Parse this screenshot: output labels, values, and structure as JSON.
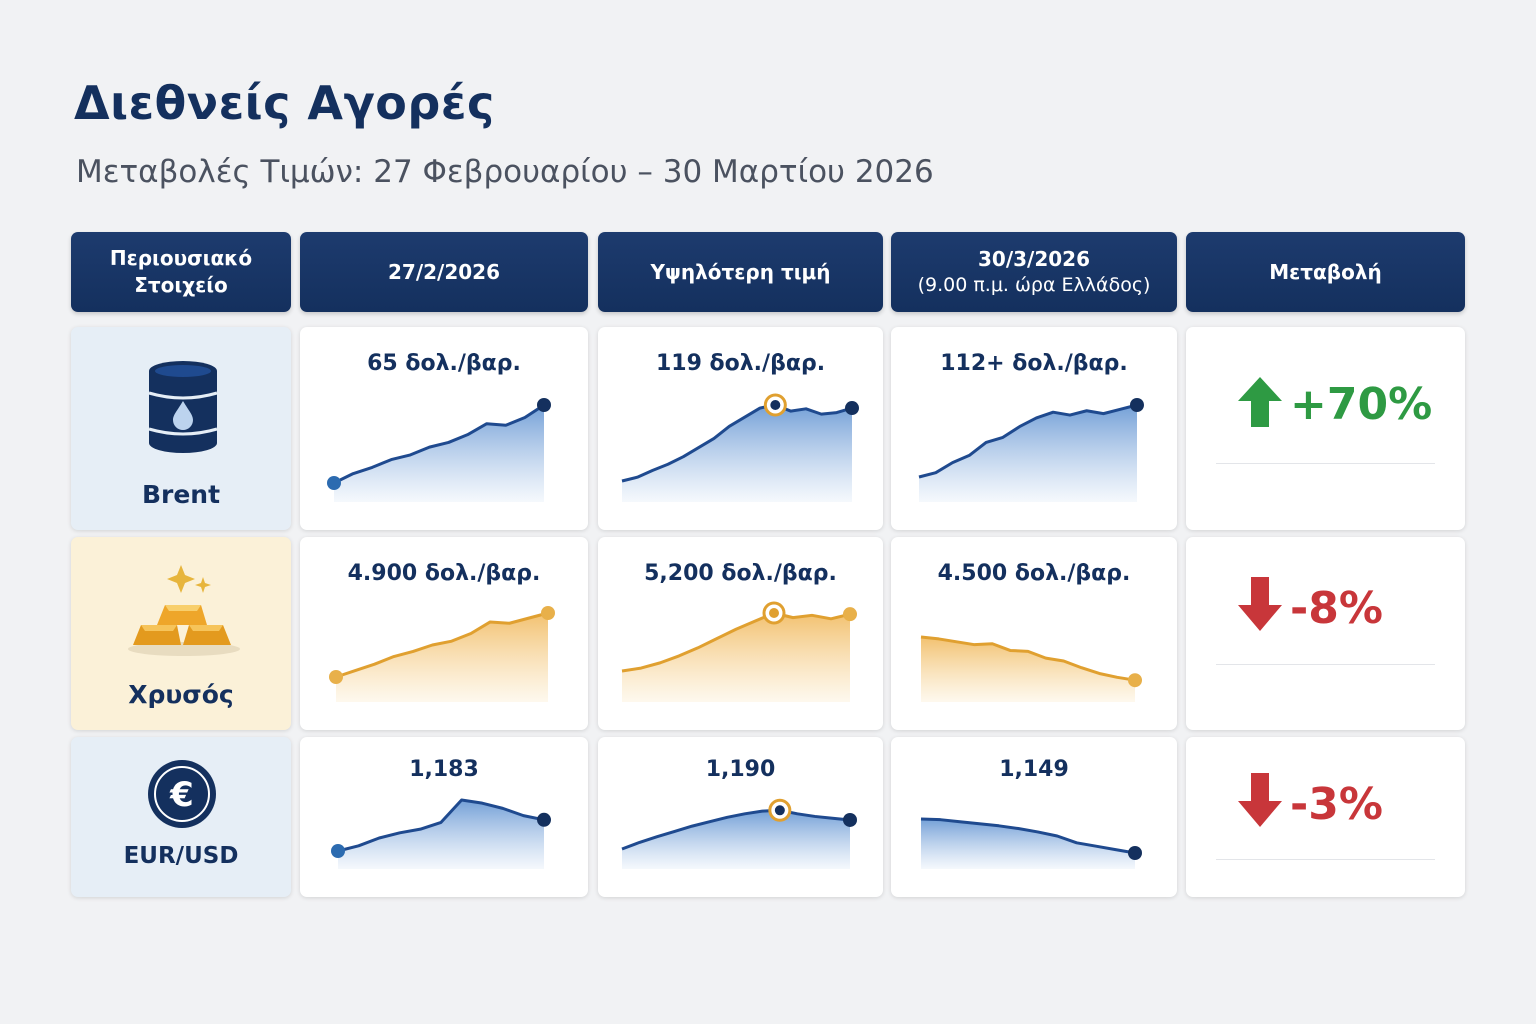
{
  "title": "Διεθνείς Αγορές",
  "subtitle": "Μεταβολές Τιμών: 27 Φεβρουαρίου – 30 Μαρτίου 2026",
  "headers": {
    "asset_line1": "Περιουσιακό",
    "asset_line2": "Στοιχείο",
    "start": "27/2/2026",
    "high": "Υψηλότερη τιμή",
    "end_line1": "30/3/2026",
    "end_line2": "(9.00 π.μ. ώρα Ελλάδος)",
    "change": "Μεταβολή"
  },
  "colors": {
    "navy": "#14305e",
    "blue_line": "#1f4a8f",
    "blue_dot": "#2c6bb0",
    "gold_line": "#e0a030",
    "gold_dot": "#e8b04a",
    "up": "#2e9a43",
    "down": "#c8363a"
  },
  "rows": [
    {
      "asset": "Brent",
      "icon": "oil-barrel-icon",
      "start": "65 δολ./βαρ.",
      "high": "119 δολ./βαρ.",
      "end": "112+ δολ./βαρ.",
      "change": "+70%",
      "direction": "up"
    },
    {
      "asset": "Χρυσός",
      "icon": "gold-bars-icon",
      "start": "4.900 δολ./βαρ.",
      "high": "5,200 δολ./βαρ.",
      "end": "4.500 δολ./βαρ.",
      "change": "-8%",
      "direction": "down"
    },
    {
      "asset": "EUR/USD",
      "icon": "euro-coin-icon",
      "start": "1,183",
      "high": "1,190",
      "end": "1,149",
      "change": "-3%",
      "direction": "down"
    }
  ],
  "chart_data": {
    "type": "table",
    "columns": [
      "Περιουσιακό Στοιχείο",
      "27/2/2026",
      "Υψηλότερη τιμή",
      "30/3/2026 (9.00 π.μ. ώρα Ελλάδος)",
      "Μεταβολή"
    ],
    "rows": [
      [
        "Brent",
        "65 δολ./βαρ.",
        "119 δολ./βαρ.",
        "112+ δολ./βαρ.",
        "+70%"
      ],
      [
        "Χρυσός",
        "4.900 δολ./βαρ.",
        "5,200 δολ./βαρ.",
        "4.500 δολ./βαρ.",
        "-8%"
      ],
      [
        "EUR/USD",
        "1,183",
        "1,190",
        "1,149",
        "-3%"
      ]
    ],
    "sparklines": [
      {
        "asset": "Brent",
        "column": "27/2/2026",
        "trend": [
          0.0,
          0.12,
          0.2,
          0.3,
          0.36,
          0.46,
          0.52,
          0.62,
          0.76,
          0.74,
          0.84,
          1.0
        ]
      },
      {
        "asset": "Brent",
        "column": "Υψηλότερη τιμή",
        "trend": [
          0.0,
          0.05,
          0.14,
          0.22,
          0.32,
          0.44,
          0.56,
          0.72,
          0.84,
          0.96,
          1.0,
          0.92,
          0.95,
          0.88,
          0.9,
          0.96
        ]
      },
      {
        "asset": "Brent",
        "column": "30/3/2026",
        "trend": [
          0.0,
          0.06,
          0.2,
          0.3,
          0.48,
          0.55,
          0.7,
          0.82,
          0.9,
          0.86,
          0.92,
          0.88,
          0.94,
          1.0
        ]
      },
      {
        "asset": "Χρυσός",
        "column": "27/2/2026",
        "trend": [
          0.0,
          0.1,
          0.2,
          0.32,
          0.4,
          0.5,
          0.56,
          0.68,
          0.86,
          0.84,
          0.92,
          1.0
        ]
      },
      {
        "asset": "Χρυσός",
        "column": "Υψηλότερη τιμή",
        "trend": [
          0.0,
          0.05,
          0.14,
          0.26,
          0.4,
          0.56,
          0.72,
          0.86,
          1.0,
          0.92,
          0.96,
          0.9,
          0.98
        ]
      },
      {
        "asset": "Χρυσός",
        "column": "30/3/2026",
        "trend": [
          1.0,
          0.96,
          0.9,
          0.84,
          0.86,
          0.72,
          0.7,
          0.56,
          0.5,
          0.36,
          0.24,
          0.16,
          0.1
        ]
      },
      {
        "asset": "EUR/USD",
        "column": "27/2/2026",
        "trend": [
          0.0,
          0.1,
          0.25,
          0.35,
          0.42,
          0.55,
          0.98,
          0.92,
          0.82,
          0.68,
          0.6
        ]
      },
      {
        "asset": "EUR/USD",
        "column": "Υψηλότερη τιμή",
        "trend": [
          0.0,
          0.15,
          0.28,
          0.4,
          0.52,
          0.62,
          0.72,
          0.8,
          0.86,
          0.88,
          0.8,
          0.74,
          0.7,
          0.66
        ]
      },
      {
        "asset": "EUR/USD",
        "column": "30/3/2026",
        "trend": [
          1.0,
          0.98,
          0.92,
          0.86,
          0.8,
          0.72,
          0.62,
          0.5,
          0.3,
          0.2,
          0.1,
          0.0
        ]
      }
    ]
  }
}
